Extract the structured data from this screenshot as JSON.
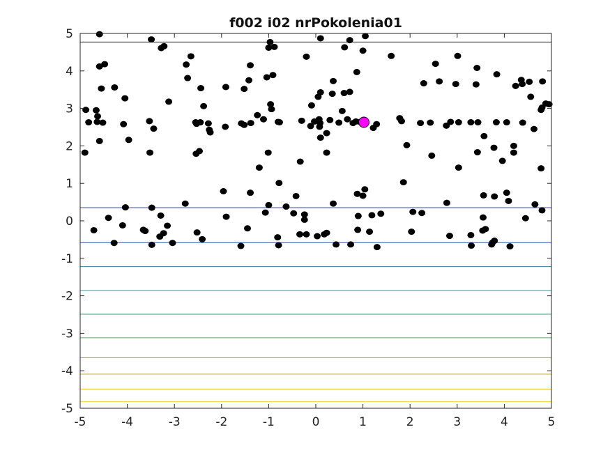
{
  "chart_data": {
    "type": "scatter",
    "title": "f002 i02 nrPokolenia01",
    "xlabel": "",
    "ylabel": "",
    "xlim": [
      -5,
      5
    ],
    "ylim": [
      -5,
      5
    ],
    "xticks": [
      "-5",
      "-4",
      "-3",
      "-2",
      "-1",
      "0",
      "1",
      "2",
      "3",
      "4",
      "5"
    ],
    "yticks": [
      "5",
      "4",
      "3",
      "2",
      "1",
      "0",
      "-1",
      "-2",
      "-3",
      "-4",
      "-5"
    ],
    "grid": false,
    "legend": "none",
    "contour_levels": [
      {
        "y": 4.77,
        "color": "#2b2b2b"
      },
      {
        "y": 0.35,
        "color": "#2e3f9e"
      },
      {
        "y": -0.58,
        "color": "#2b55b8"
      },
      {
        "y": -1.22,
        "color": "#2a7f9e"
      },
      {
        "y": -1.86,
        "color": "#2e9a8a"
      },
      {
        "y": -2.49,
        "color": "#3aa37a"
      },
      {
        "y": -3.12,
        "color": "#5aa86a"
      },
      {
        "y": -3.65,
        "color": "#a3a84a"
      },
      {
        "y": -4.09,
        "color": "#c9ad3a"
      },
      {
        "y": -4.49,
        "color": "#e0bc2a"
      },
      {
        "y": -4.82,
        "color": "#f2d62a"
      }
    ],
    "best_point": {
      "x": 1.02,
      "y": 2.63,
      "color": "#ff00ff"
    },
    "point_color": "#000000",
    "points": [
      [
        -4.59,
        4.98
      ],
      [
        -3.49,
        4.84
      ],
      [
        -3.28,
        4.61
      ],
      [
        -3.22,
        4.66
      ],
      [
        -1.0,
        4.62
      ],
      [
        -0.97,
        4.77
      ],
      [
        -0.88,
        4.64
      ],
      [
        0.1,
        4.87
      ],
      [
        0.61,
        4.63
      ],
      [
        0.72,
        4.82
      ],
      [
        1.05,
        4.93
      ],
      [
        1.0,
        4.54
      ],
      [
        -4.59,
        4.12
      ],
      [
        -4.48,
        4.18
      ],
      [
        -2.65,
        4.39
      ],
      [
        -2.75,
        4.17
      ],
      [
        -1.39,
        4.15
      ],
      [
        -0.2,
        4.38
      ],
      [
        1.6,
        4.4
      ],
      [
        2.54,
        4.19
      ],
      [
        3.01,
        4.4
      ],
      [
        3.42,
        4.08
      ],
      [
        -1.42,
        3.75
      ],
      [
        -1.52,
        3.52
      ],
      [
        -1.04,
        3.83
      ],
      [
        -0.91,
        3.89
      ],
      [
        -2.72,
        3.81
      ],
      [
        -2.44,
        3.54
      ],
      [
        -1.91,
        3.57
      ],
      [
        -4.55,
        3.53
      ],
      [
        -4.27,
        3.56
      ],
      [
        0.37,
        3.73
      ],
      [
        0.87,
        3.97
      ],
      [
        2.29,
        3.67
      ],
      [
        2.62,
        3.72
      ],
      [
        2.97,
        3.65
      ],
      [
        3.4,
        3.64
      ],
      [
        3.84,
        3.91
      ],
      [
        4.24,
        3.6
      ],
      [
        4.36,
        3.76
      ],
      [
        4.38,
        3.65
      ],
      [
        4.53,
        3.71
      ],
      [
        4.81,
        3.72
      ],
      [
        0.1,
        3.43
      ],
      [
        0.05,
        3.31
      ],
      [
        0.35,
        3.39
      ],
      [
        0.6,
        3.41
      ],
      [
        0.72,
        3.44
      ],
      [
        -4.05,
        3.27
      ],
      [
        -3.12,
        3.18
      ],
      [
        4.56,
        3.31
      ],
      [
        -4.88,
        2.96
      ],
      [
        -4.66,
        2.95
      ],
      [
        -4.63,
        2.79
      ],
      [
        -4.82,
        2.63
      ],
      [
        -4.64,
        2.64
      ],
      [
        -4.52,
        2.62
      ],
      [
        -4.08,
        2.58
      ],
      [
        -3.53,
        2.66
      ],
      [
        -3.44,
        2.46
      ],
      [
        -2.55,
        2.63
      ],
      [
        -2.53,
        2.59
      ],
      [
        -2.45,
        2.63
      ],
      [
        -2.38,
        3.06
      ],
      [
        -2.28,
        2.6
      ],
      [
        -2.26,
        2.43
      ],
      [
        -2.24,
        2.36
      ],
      [
        -1.92,
        2.51
      ],
      [
        -1.58,
        2.6
      ],
      [
        -1.52,
        2.56
      ],
      [
        -1.38,
        2.61
      ],
      [
        -1.24,
        2.82
      ],
      [
        -1.11,
        2.71
      ],
      [
        -0.96,
        3.11
      ],
      [
        -0.94,
        2.98
      ],
      [
        -0.8,
        2.64
      ],
      [
        -0.77,
        2.63
      ],
      [
        -0.3,
        2.67
      ],
      [
        -0.11,
        2.53
      ],
      [
        -0.09,
        3.08
      ],
      [
        -0.03,
        2.65
      ],
      [
        0.07,
        2.71
      ],
      [
        0.09,
        2.61
      ],
      [
        0.08,
        2.51
      ],
      [
        0.23,
        2.34
      ],
      [
        0.1,
        2.22
      ],
      [
        0.3,
        2.69
      ],
      [
        0.49,
        2.62
      ],
      [
        0.56,
        2.93
      ],
      [
        0.67,
        2.71
      ],
      [
        0.79,
        2.61
      ],
      [
        0.85,
        2.65
      ],
      [
        0.94,
        2.64
      ],
      [
        1.22,
        2.48
      ],
      [
        1.29,
        2.58
      ],
      [
        1.78,
        2.74
      ],
      [
        1.82,
        2.66
      ],
      [
        2.22,
        2.61
      ],
      [
        2.43,
        2.62
      ],
      [
        2.77,
        2.54
      ],
      [
        2.86,
        2.64
      ],
      [
        3.03,
        2.63
      ],
      [
        3.29,
        2.63
      ],
      [
        3.44,
        2.63
      ],
      [
        3.83,
        2.63
      ],
      [
        4.05,
        2.63
      ],
      [
        4.39,
        2.62
      ],
      [
        4.63,
        2.45
      ],
      [
        4.78,
        2.96
      ],
      [
        4.8,
        3.02
      ],
      [
        4.88,
        3.13
      ],
      [
        4.95,
        3.11
      ],
      [
        -4.9,
        1.82
      ],
      [
        -4.59,
        2.13
      ],
      [
        -3.97,
        2.16
      ],
      [
        -3.52,
        1.82
      ],
      [
        -2.54,
        1.79
      ],
      [
        -2.47,
        1.86
      ],
      [
        -1.01,
        1.82
      ],
      [
        -1.2,
        1.42
      ],
      [
        -0.33,
        1.58
      ],
      [
        0.23,
        1.82
      ],
      [
        1.93,
        2.02
      ],
      [
        2.46,
        1.74
      ],
      [
        3.03,
        1.42
      ],
      [
        3.43,
        1.83
      ],
      [
        3.57,
        2.26
      ],
      [
        3.78,
        1.95
      ],
      [
        3.96,
        1.6
      ],
      [
        4.2,
        2.0
      ],
      [
        4.2,
        1.82
      ],
      [
        4.78,
        1.4
      ],
      [
        -0.78,
        1.01
      ],
      [
        -1.96,
        0.79
      ],
      [
        -1.39,
        0.75
      ],
      [
        0.88,
        0.72
      ],
      [
        1.04,
        0.84
      ],
      [
        1.0,
        0.67
      ],
      [
        1.86,
        1.03
      ],
      [
        3.56,
        0.68
      ],
      [
        3.79,
        0.65
      ],
      [
        4.05,
        0.75
      ],
      [
        4.09,
        0.53
      ],
      [
        4.65,
        0.44
      ],
      [
        -4.04,
        0.36
      ],
      [
        -3.48,
        0.35
      ],
      [
        -2.77,
        0.46
      ],
      [
        -3.29,
        0.14
      ],
      [
        -4.4,
        0.08
      ],
      [
        -1.9,
        0.11
      ],
      [
        -1.0,
        0.42
      ],
      [
        -1.07,
        0.22
      ],
      [
        -0.63,
        0.38
      ],
      [
        -0.42,
        0.66
      ],
      [
        -0.47,
        0.2
      ],
      [
        -0.24,
        0.17
      ],
      [
        -0.24,
        0.03
      ],
      [
        0.37,
        0.46
      ],
      [
        0.9,
        0.13
      ],
      [
        1.19,
        0.15
      ],
      [
        1.38,
        0.19
      ],
      [
        2.06,
        0.24
      ],
      [
        2.25,
        0.21
      ],
      [
        2.78,
        0.48
      ],
      [
        3.55,
        0.09
      ],
      [
        4.45,
        0.07
      ],
      [
        4.8,
        0.28
      ],
      [
        -4.71,
        -0.25
      ],
      [
        -4.1,
        -0.12
      ],
      [
        -3.66,
        -0.24
      ],
      [
        -3.62,
        -0.27
      ],
      [
        -3.15,
        -0.13
      ],
      [
        -3.23,
        -0.33
      ],
      [
        -3.31,
        -0.42
      ],
      [
        -2.52,
        -0.31
      ],
      [
        -2.41,
        -0.49
      ],
      [
        -1.45,
        -0.2
      ],
      [
        -0.81,
        -0.44
      ],
      [
        -0.34,
        -0.36
      ],
      [
        -0.2,
        -0.36
      ],
      [
        0.03,
        -0.41
      ],
      [
        0.18,
        -0.36
      ],
      [
        0.23,
        -0.32
      ],
      [
        0.89,
        -0.24
      ],
      [
        1.14,
        -0.29
      ],
      [
        2.03,
        -0.29
      ],
      [
        2.84,
        -0.4
      ],
      [
        3.29,
        -0.38
      ],
      [
        3.54,
        -0.26
      ],
      [
        3.6,
        -0.22
      ],
      [
        3.75,
        -0.58
      ],
      [
        3.79,
        -0.53
      ],
      [
        -4.28,
        -0.59
      ],
      [
        -3.48,
        -0.64
      ],
      [
        -3.04,
        -0.59
      ],
      [
        -1.59,
        -0.67
      ],
      [
        -0.79,
        -0.65
      ],
      [
        0.43,
        -0.63
      ],
      [
        0.74,
        -0.63
      ],
      [
        1.3,
        -0.7
      ],
      [
        3.3,
        -0.66
      ],
      [
        3.73,
        -0.63
      ],
      [
        4.12,
        -0.68
      ]
    ]
  }
}
